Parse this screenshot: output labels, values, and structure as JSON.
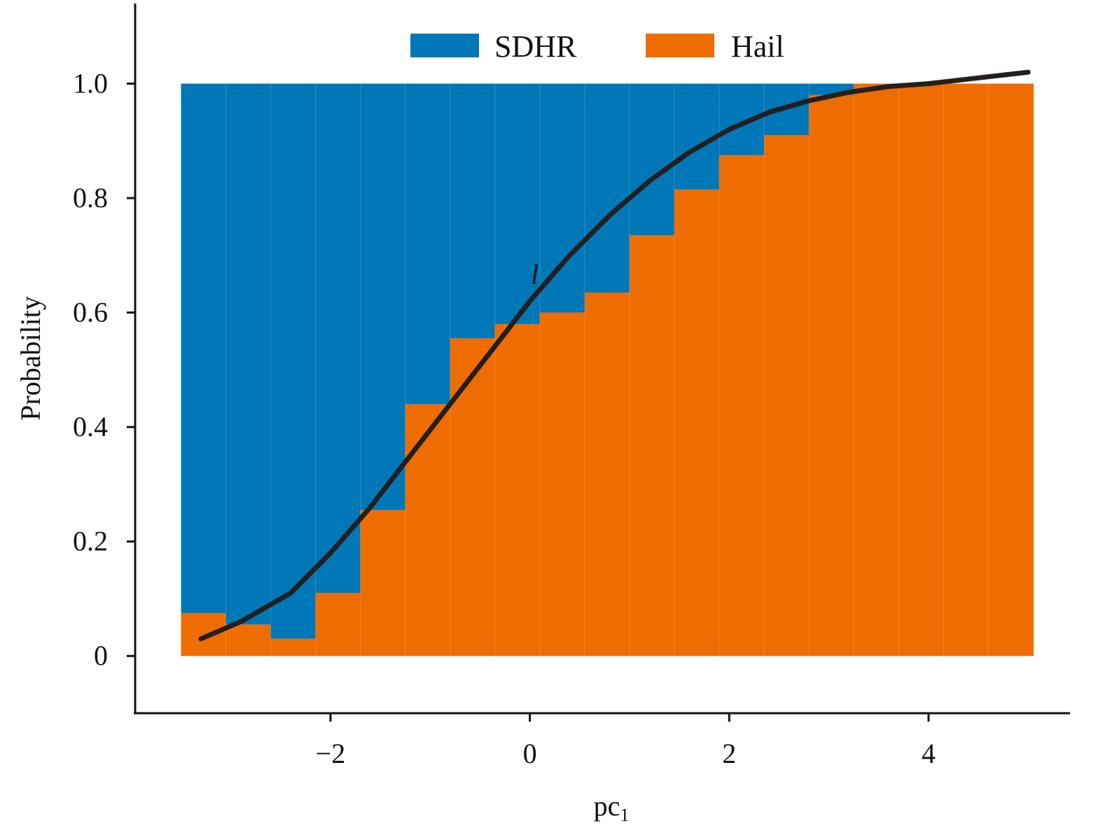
{
  "chart_data": {
    "type": "bar",
    "stacked": true,
    "normalized": true,
    "title": "",
    "xlabel": "pc",
    "xlabel_subscript": "1",
    "ylabel": "Probability",
    "xlim": [
      -3.96,
      5.42
    ],
    "ylim": [
      -0.1,
      1.14
    ],
    "x_ticks": [
      -2,
      0,
      2,
      4
    ],
    "x_tick_labels": [
      "−2",
      "0",
      "2",
      "4"
    ],
    "y_ticks": [
      0,
      0.2,
      0.4,
      0.6,
      0.8,
      1.0
    ],
    "y_tick_labels": [
      "0",
      "0.2",
      "0.4",
      "0.6",
      "0.8",
      "1.0"
    ],
    "bin_edges": [
      -3.5,
      -3.05,
      -2.6,
      -2.15,
      -1.7,
      -1.25,
      -0.8,
      -0.35,
      0.1,
      0.55,
      1.0,
      1.45,
      1.9,
      2.35,
      2.8,
      3.25,
      3.7,
      4.15,
      4.6,
      5.05
    ],
    "series": [
      {
        "name": "SDHR",
        "color": "#0077b6",
        "values": [
          0.925,
          0.945,
          0.97,
          0.89,
          0.745,
          0.56,
          0.445,
          0.42,
          0.4,
          0.365,
          0.265,
          0.185,
          0.125,
          0.09,
          0.02,
          0.0,
          0.0,
          0.0,
          0.0
        ]
      },
      {
        "name": "Hail",
        "color": "#ef6c00",
        "values": [
          0.075,
          0.055,
          0.03,
          0.11,
          0.255,
          0.44,
          0.555,
          0.58,
          0.6,
          0.635,
          0.735,
          0.815,
          0.875,
          0.91,
          0.98,
          1.0,
          1.0,
          1.0,
          1.0
        ]
      }
    ],
    "curve": {
      "name": "l",
      "color": "#231f20",
      "x": [
        -3.3,
        -2.9,
        -2.4,
        -2.0,
        -1.6,
        -1.2,
        -0.8,
        -0.4,
        0.0,
        0.4,
        0.8,
        1.2,
        1.6,
        2.0,
        2.4,
        2.8,
        3.2,
        3.6,
        4.0,
        4.5,
        5.0
      ],
      "y": [
        0.03,
        0.06,
        0.11,
        0.18,
        0.26,
        0.35,
        0.44,
        0.53,
        0.62,
        0.7,
        0.77,
        0.83,
        0.88,
        0.92,
        0.95,
        0.97,
        0.985,
        0.995,
        1.0,
        1.01,
        1.02
      ]
    },
    "annotations": [
      {
        "text": "l",
        "x": 0.05,
        "y": 0.65
      }
    ],
    "legend": {
      "position": "top-center",
      "entries": [
        "SDHR",
        "Hail"
      ]
    },
    "grid": false
  }
}
